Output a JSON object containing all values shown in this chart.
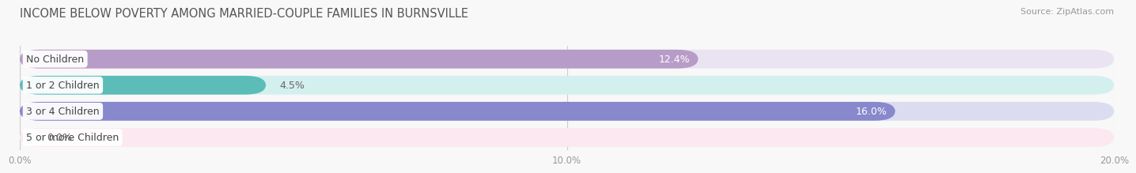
{
  "title": "INCOME BELOW POVERTY AMONG MARRIED-COUPLE FAMILIES IN BURNSVILLE",
  "source": "Source: ZipAtlas.com",
  "categories": [
    "No Children",
    "1 or 2 Children",
    "3 or 4 Children",
    "5 or more Children"
  ],
  "values": [
    12.4,
    4.5,
    16.0,
    0.0
  ],
  "bar_colors": [
    "#b89cc8",
    "#5bbcb8",
    "#8888cc",
    "#f4a8c0"
  ],
  "bar_bg_colors": [
    "#eae4f2",
    "#d4f0ee",
    "#dcdcf0",
    "#fce8f0"
  ],
  "label_values": [
    "12.4%",
    "4.5%",
    "16.0%",
    "0.0%"
  ],
  "label_inside": [
    true,
    false,
    true,
    false
  ],
  "xlim": [
    0,
    20.0
  ],
  "xticks": [
    0.0,
    10.0,
    20.0
  ],
  "xtick_labels": [
    "0.0%",
    "10.0%",
    "20.0%"
  ],
  "title_fontsize": 10.5,
  "source_fontsize": 8,
  "value_fontsize": 9,
  "category_fontsize": 9,
  "bar_height": 0.72,
  "background_color": "#f8f8f8",
  "bar_bg_alpha": 1.0
}
